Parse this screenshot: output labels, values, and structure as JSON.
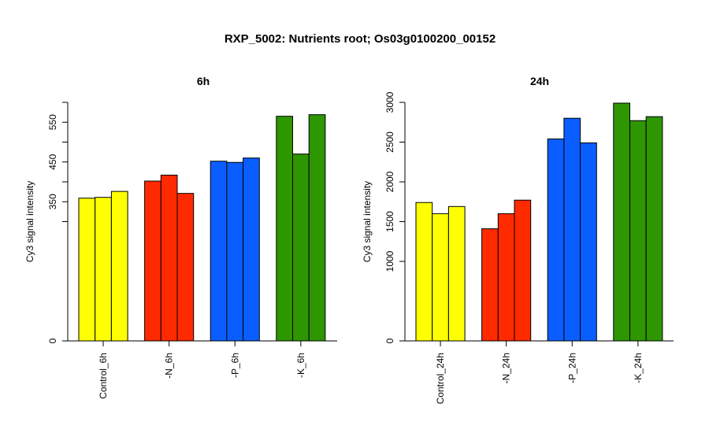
{
  "title": "RXP_5002: Nutrients root; Os03g0100200_00152",
  "chart_data": [
    {
      "type": "bar",
      "title": "6h",
      "ylabel": "Cy3 signal intensity",
      "categories": [
        "Control_6h",
        "-N_6h",
        "-P_6h",
        "-K_6h"
      ],
      "group_colors": [
        "#ffff00",
        "#ff2a00",
        "#0a5eff",
        "#2d9600"
      ],
      "values": [
        [
          359,
          361,
          376
        ],
        [
          402,
          417,
          371
        ],
        [
          452,
          449,
          460
        ],
        [
          565,
          470,
          569
        ]
      ],
      "ylim": [
        0,
        600
      ],
      "yticks": [
        0,
        350,
        450,
        550
      ],
      "yticks_minor": [
        300,
        400,
        500,
        600
      ]
    },
    {
      "type": "bar",
      "title": "24h",
      "ylabel": "Cy3 signal intensity",
      "categories": [
        "Control_24h",
        "-N_24h",
        "-P_24h",
        "-K_24h"
      ],
      "group_colors": [
        "#ffff00",
        "#ff2a00",
        "#0a5eff",
        "#2d9600"
      ],
      "values": [
        [
          1740,
          1600,
          1690
        ],
        [
          1410,
          1600,
          1770
        ],
        [
          2540,
          2800,
          2490
        ],
        [
          2990,
          2770,
          2820
        ]
      ],
      "ylim": [
        0,
        3000
      ],
      "yticks": [
        0,
        1000,
        1500,
        2000,
        2500,
        3000
      ]
    }
  ]
}
